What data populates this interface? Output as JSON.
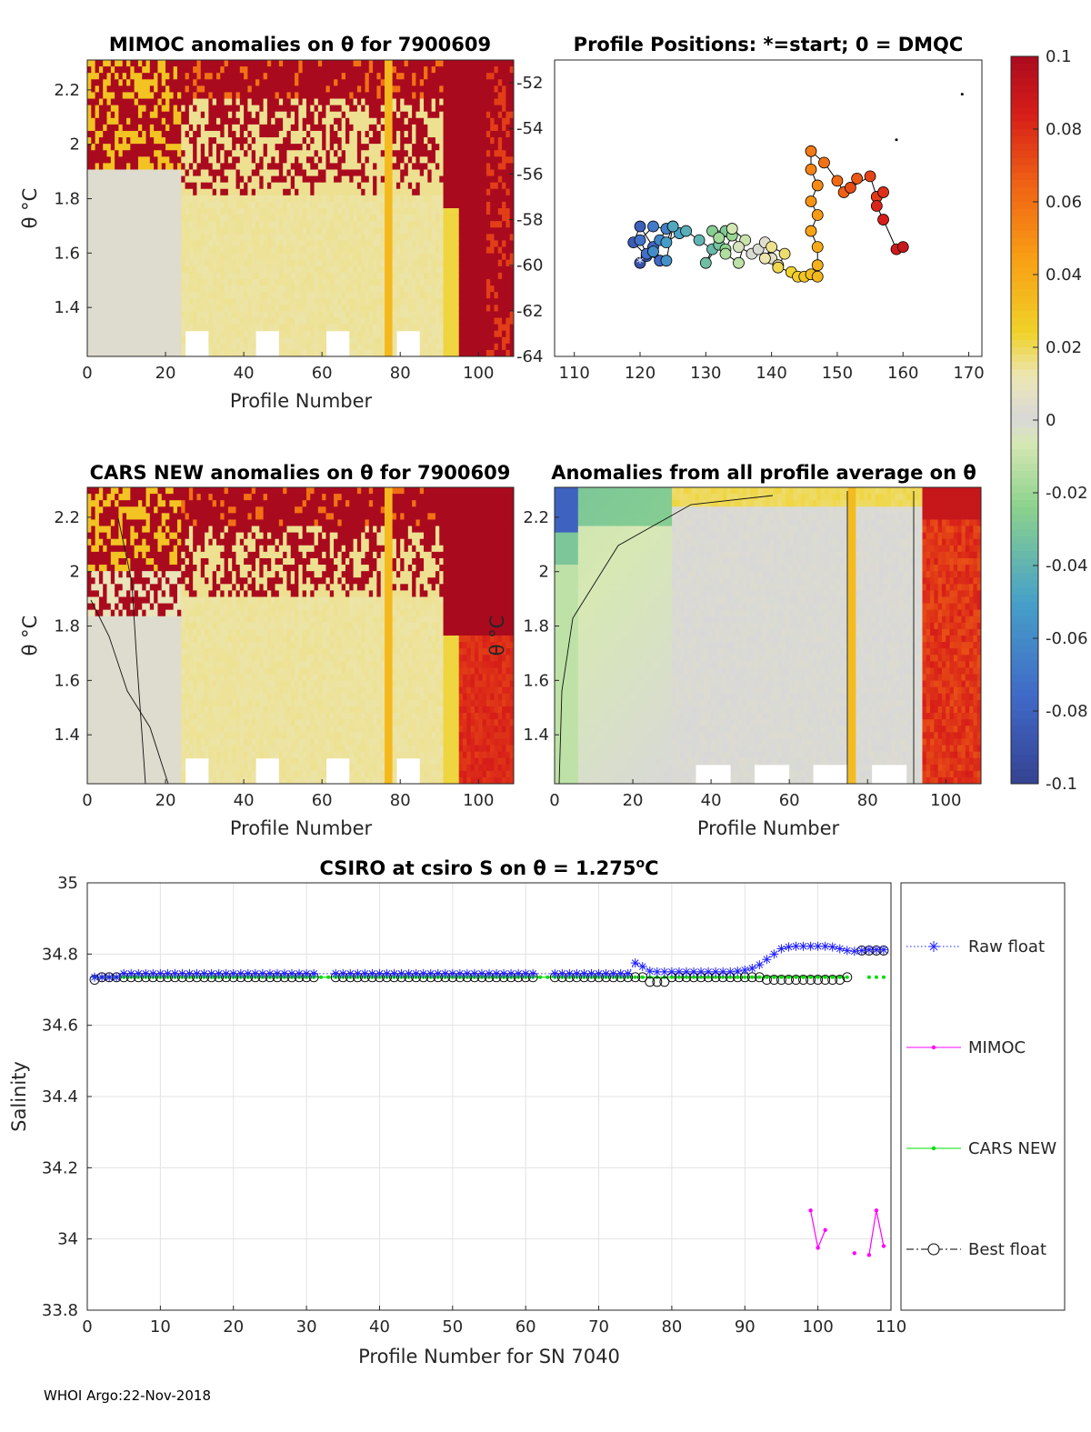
{
  "float_id": "7900609",
  "footer": "WHOI Argo:22-Nov-2018",
  "colorbar": {
    "min": -0.1,
    "max": 0.1,
    "ticks": [
      "0.1",
      "0.08",
      "0.06",
      "0.04",
      "0.02",
      "0",
      "-0.02",
      "-0.04",
      "-0.06",
      "-0.08",
      "-0.1"
    ]
  },
  "chart_data": [
    {
      "id": "mimoc",
      "type": "heatmap",
      "title": "MIMOC anomalies on θ  for 7900609",
      "xlabel": "Profile Number",
      "ylabel": "θ °C",
      "xlim": [
        0,
        109
      ],
      "ylim": [
        1.22,
        2.31
      ],
      "xticks": [
        "0",
        "20",
        "40",
        "60",
        "80",
        "100"
      ],
      "yticks": [
        "1.4",
        "1.6",
        "1.8",
        "2",
        "2.2"
      ],
      "description_zones": [
        {
          "profiles": [
            0,
            25
          ],
          "upper_anomaly": 0.1,
          "lower_anomaly": 0.0
        },
        {
          "profiles": [
            25,
            95
          ],
          "upper_anomaly": 0.1,
          "lower_anomaly": 0.015
        },
        {
          "profiles": [
            95,
            109
          ],
          "upper_anomaly": 0.1,
          "lower_anomaly": 0.1
        }
      ]
    },
    {
      "id": "positions",
      "type": "scatter",
      "title": "Profile Positions: *=start; 0 = DMQC",
      "xlim": [
        107,
        172
      ],
      "ylim": [
        -64,
        -51
      ],
      "xticks": [
        "110",
        "120",
        "130",
        "140",
        "150",
        "160",
        "170"
      ],
      "yticks": [
        "-52",
        "-54",
        "-56",
        "-58",
        "-60",
        "-62",
        "-64"
      ],
      "lon": [
        120,
        121,
        119,
        120,
        122,
        123,
        121,
        120,
        122,
        124,
        123,
        122,
        124,
        125,
        124,
        126,
        125,
        127,
        129,
        131,
        130,
        132,
        133,
        131,
        133,
        134,
        132,
        133,
        135,
        136,
        134,
        135,
        137,
        138,
        139,
        140,
        141,
        139,
        140,
        142,
        141,
        143,
        144,
        145,
        146,
        147,
        147,
        147,
        146,
        147,
        146,
        147,
        146,
        146,
        148,
        150,
        151,
        153,
        152,
        155,
        156,
        157,
        156,
        157,
        159,
        160
      ],
      "lat": [
        -59.9,
        -59.6,
        -59,
        -58.3,
        -59.2,
        -59.8,
        -59.5,
        -58.9,
        -58.3,
        -58.4,
        -58.9,
        -59.4,
        -59.8,
        -58.3,
        -59,
        -58.6,
        -58.3,
        -58.5,
        -58.9,
        -59.3,
        -59.9,
        -59.1,
        -58.5,
        -58.5,
        -59.3,
        -58.7,
        -58.8,
        -59.5,
        -59.9,
        -58.9,
        -58.4,
        -59.2,
        -59.5,
        -59.3,
        -59,
        -59.7,
        -60,
        -59.7,
        -59.2,
        -59.5,
        -60.1,
        -60.3,
        -60.5,
        -60.5,
        -60.4,
        -60.5,
        -60,
        -59.2,
        -58.5,
        -57.8,
        -57.2,
        -56.5,
        -55.8,
        -55,
        -55.5,
        -56.3,
        -56.8,
        -56.2,
        -56.6,
        -56.1,
        -57,
        -56.8,
        -57.4,
        -58,
        -59.3,
        -59.2
      ],
      "colors_by_profile": true
    },
    {
      "id": "cars",
      "type": "heatmap",
      "title": "CARS NEW anomalies on θ for 7900609",
      "xlabel": "Profile Number",
      "ylabel": "θ °C",
      "xlim": [
        0,
        109
      ],
      "ylim": [
        1.22,
        2.31
      ],
      "xticks": [
        "0",
        "20",
        "40",
        "60",
        "80",
        "100"
      ],
      "yticks": [
        "1.4",
        "1.6",
        "1.8",
        "2",
        "2.2"
      ]
    },
    {
      "id": "allavg",
      "type": "heatmap",
      "title": "Anomalies from all profile average on θ",
      "xlabel": "Profile Number",
      "ylabel": "θ °C",
      "xlim": [
        0,
        109
      ],
      "ylim": [
        1.22,
        2.31
      ],
      "xticks": [
        "0",
        "20",
        "40",
        "60",
        "80",
        "100"
      ],
      "yticks": [
        "1.4",
        "1.6",
        "1.8",
        "2",
        "2.2"
      ]
    },
    {
      "id": "salinity",
      "type": "line",
      "title": "CSIRO at csiro S on θ = 1.275",
      "title_superscript": "o",
      "title_unit": "C",
      "xlabel": "Profile Number for SN 7040",
      "ylabel": "Salinity",
      "xlim": [
        0,
        110
      ],
      "ylim": [
        33.8,
        35
      ],
      "xticks": [
        "0",
        "10",
        "20",
        "30",
        "40",
        "50",
        "60",
        "70",
        "80",
        "90",
        "100",
        "110"
      ],
      "yticks": [
        "35",
        "34.8",
        "34.6",
        "34.4",
        "34.2",
        "34",
        "33.8"
      ],
      "series": [
        {
          "name": "Raw float",
          "color": "#2020ff",
          "style": "dotted-star",
          "x_ranges": [
            [
              1,
              31
            ],
            [
              34,
              61
            ],
            [
              64,
              74
            ]
          ],
          "base_value": 34.745,
          "extra_x": [
            75,
            76,
            77,
            78,
            79,
            80,
            81,
            82,
            83,
            84,
            85,
            86,
            87,
            88,
            89,
            90,
            91,
            92,
            93,
            94,
            95,
            96,
            97,
            98,
            99,
            100,
            101,
            102,
            103,
            104,
            105,
            106,
            107,
            108,
            109
          ],
          "extra_y": [
            34.775,
            34.765,
            34.752,
            34.75,
            34.75,
            34.75,
            34.75,
            34.75,
            34.75,
            34.75,
            34.75,
            34.75,
            34.75,
            34.75,
            34.752,
            34.755,
            34.76,
            34.77,
            34.785,
            34.8,
            34.815,
            34.82,
            34.822,
            34.822,
            34.822,
            34.822,
            34.822,
            34.82,
            34.815,
            34.81,
            34.808,
            34.81,
            34.812,
            34.812,
            34.812
          ]
        },
        {
          "name": "MIMOC",
          "color": "#ff00ff",
          "style": "solid-dot",
          "x": [
            99,
            100,
            101,
            null,
            105,
            null,
            107,
            108,
            109
          ],
          "y": [
            34.08,
            33.975,
            34.025,
            null,
            33.96,
            null,
            33.955,
            34.08,
            33.98
          ]
        },
        {
          "name": "CARS NEW",
          "color": "#00dd00",
          "style": "solid-dot",
          "base_value": 34.735
        },
        {
          "name": "Best float",
          "color": "#000000",
          "style": "dashdot-circle",
          "base_value": 34.735
        }
      ]
    }
  ]
}
